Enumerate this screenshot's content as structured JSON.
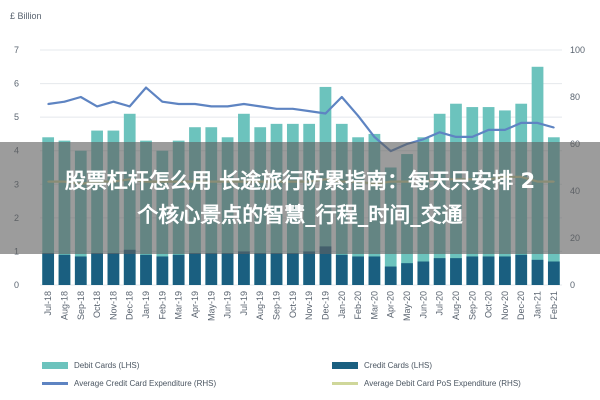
{
  "chart_data": {
    "type": "bar",
    "unit_label": "£ Billion",
    "categories": [
      "Jul-18",
      "Aug-18",
      "Sep-18",
      "Oct-18",
      "Nov-18",
      "Dec-18",
      "Jan-19",
      "Feb-19",
      "Mar-19",
      "Apr-19",
      "May-19",
      "Jun-19",
      "Jul-19",
      "Aug-19",
      "Sep-19",
      "Oct-19",
      "Nov-19",
      "Dec-19",
      "Jan-20",
      "Feb-20",
      "Mar-20",
      "Apr-20",
      "May-20",
      "Jun-20",
      "Jul-20",
      "Aug-20",
      "Sep-20",
      "Oct-20",
      "Nov-20",
      "Dec-20",
      "Jan-21",
      "Feb-21"
    ],
    "ylim_left": [
      0,
      7
    ],
    "yticks_left": [
      "0",
      "1",
      "2",
      "3",
      "4",
      "5",
      "6",
      "7"
    ],
    "ylim_right": [
      0,
      100
    ],
    "yticks_right": [
      "0",
      "20",
      "40",
      "60",
      "80",
      "100"
    ],
    "series": [
      {
        "name": "Debit Cards (LHS)",
        "axis": "left",
        "kind": "bar",
        "color": "#6cc3bd",
        "values": [
          4.4,
          4.3,
          4.0,
          4.6,
          4.6,
          5.1,
          4.3,
          4.0,
          4.3,
          4.7,
          4.7,
          4.4,
          5.1,
          4.7,
          4.8,
          4.8,
          4.8,
          5.9,
          4.8,
          4.4,
          4.5,
          3.5,
          3.9,
          4.4,
          5.1,
          5.4,
          5.3,
          5.3,
          5.2,
          5.4,
          6.5,
          4.4
        ]
      },
      {
        "name": "Credit Cards (LHS)",
        "axis": "left",
        "kind": "bar",
        "color": "#1a5f80",
        "values": [
          0.95,
          0.9,
          0.85,
          0.95,
          0.95,
          1.05,
          0.9,
          0.85,
          0.9,
          0.95,
          0.95,
          0.95,
          1.0,
          0.95,
          0.95,
          0.95,
          1.0,
          1.15,
          0.9,
          0.85,
          0.85,
          0.55,
          0.65,
          0.7,
          0.8,
          0.8,
          0.85,
          0.85,
          0.85,
          0.9,
          0.75,
          0.7
        ]
      },
      {
        "name": "Average Credit Card Expenditure (RHS)",
        "axis": "right",
        "kind": "line",
        "color": "#5e84c2",
        "values": [
          77,
          78,
          80,
          76,
          78,
          76,
          84,
          78,
          77,
          77,
          76,
          76,
          77,
          76,
          75,
          75,
          74,
          73,
          80,
          72,
          63,
          57,
          60,
          62,
          65,
          63,
          63,
          66,
          66,
          69,
          69,
          67
        ]
      },
      {
        "name": "Average Debit Card PoS Expenditure (RHS)",
        "axis": "right",
        "kind": "line",
        "color": "#cfd79a",
        "values": [
          44,
          44,
          43,
          44,
          44,
          45,
          44,
          44,
          44,
          44,
          44,
          44,
          44,
          44,
          44,
          44,
          44,
          45,
          44,
          44,
          43,
          44,
          44,
          44,
          45,
          45,
          45,
          45,
          46,
          46,
          44,
          44
        ]
      }
    ],
    "grid": true,
    "legend_position": "bottom"
  },
  "overlay": {
    "line1": "股票杠杆怎么用 长途旅行防累指南：每天只安排 2",
    "line2": "个核心景点的智慧_行程_时间_交通"
  }
}
